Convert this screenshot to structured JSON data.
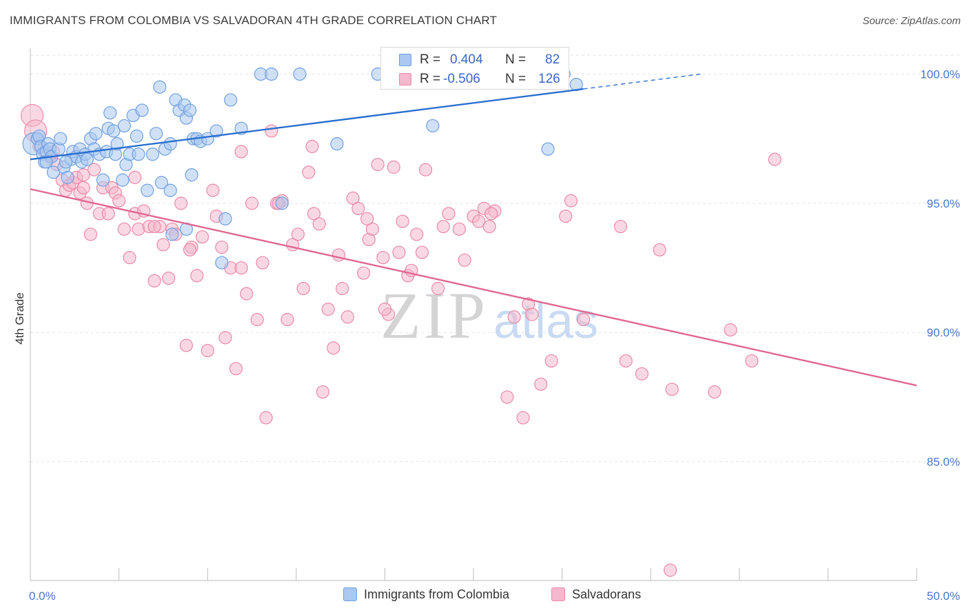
{
  "title": "IMMIGRANTS FROM COLOMBIA VS SALVADORAN 4TH GRADE CORRELATION CHART",
  "source": "Source: ZipAtlas.com",
  "watermark": {
    "zip": "ZIP",
    "atlas": "atlas"
  },
  "colors": {
    "blue_fill": "#aac8f0",
    "blue_stroke": "#6f9fe0",
    "blue_line": "#2a6fd0",
    "pink_fill": "#f5b8cc",
    "pink_stroke": "#e98aa8",
    "pink_line": "#e06890",
    "tick_text": "#4a74c9",
    "grid": "#e3e3e3"
  },
  "stats": [
    {
      "r_label": "R =",
      "r_value": "0.404",
      "n_label": "N =",
      "n_value": "82"
    },
    {
      "r_label": "R =",
      "r_value": "-0.506",
      "n_label": "N =",
      "n_value": "126"
    }
  ],
  "legend": [
    "Immigrants from Colombia",
    "Salvadorans"
  ],
  "chart_data": {
    "type": "scatter",
    "title": "IMMIGRANTS FROM COLOMBIA VS SALVADORAN 4TH GRADE CORRELATION CHART",
    "xlabel": "",
    "ylabel": "4th Grade",
    "xlim": [
      0,
      50
    ],
    "ylim": [
      80.4,
      101.0
    ],
    "x_tick_labels": [
      "0.0%",
      "50.0%"
    ],
    "y_ticks": [
      100,
      95,
      90,
      85
    ],
    "y_tick_labels": [
      "100.0%",
      "95.0%",
      "90.0%",
      "85.0%"
    ],
    "grid": true,
    "legend_position": "bottom",
    "series": [
      {
        "name": "Immigrants from Colombia",
        "trend": {
          "x": [
            0,
            37.8
          ],
          "y": [
            96.7,
            100.0
          ],
          "solid_to_x": 31.2
        },
        "points": [
          [
            0.2,
            97.3
          ],
          [
            0.4,
            97.5
          ],
          [
            0.5,
            97.6
          ],
          [
            0.6,
            97.2
          ],
          [
            0.7,
            96.9
          ],
          [
            0.8,
            96.6
          ],
          [
            0.9,
            97.0
          ],
          [
            1.0,
            97.3
          ],
          [
            1.1,
            97.1
          ],
          [
            1.2,
            96.8
          ],
          [
            1.3,
            96.2
          ],
          [
            1.6,
            97.1
          ],
          [
            1.7,
            97.5
          ],
          [
            1.9,
            96.4
          ],
          [
            2.1,
            96.0
          ],
          [
            2.3,
            96.7
          ],
          [
            2.4,
            97.0
          ],
          [
            2.6,
            96.8
          ],
          [
            2.8,
            97.1
          ],
          [
            2.9,
            96.6
          ],
          [
            3.1,
            96.9
          ],
          [
            3.2,
            96.7
          ],
          [
            3.4,
            97.5
          ],
          [
            3.6,
            97.1
          ],
          [
            3.7,
            97.7
          ],
          [
            3.9,
            96.9
          ],
          [
            4.1,
            95.9
          ],
          [
            4.3,
            97.0
          ],
          [
            4.4,
            97.9
          ],
          [
            4.5,
            98.5
          ],
          [
            4.7,
            97.8
          ],
          [
            4.8,
            96.9
          ],
          [
            4.9,
            97.3
          ],
          [
            5.2,
            95.9
          ],
          [
            5.3,
            98.0
          ],
          [
            5.4,
            96.5
          ],
          [
            5.6,
            96.9
          ],
          [
            5.8,
            98.4
          ],
          [
            6.0,
            97.6
          ],
          [
            6.3,
            98.6
          ],
          [
            6.6,
            95.5
          ],
          [
            6.9,
            96.9
          ],
          [
            7.1,
            97.7
          ],
          [
            7.3,
            99.5
          ],
          [
            7.4,
            95.8
          ],
          [
            7.6,
            97.1
          ],
          [
            7.9,
            97.3
          ],
          [
            7.9,
            95.5
          ],
          [
            8.2,
            99.0
          ],
          [
            8.4,
            98.6
          ],
          [
            8.7,
            98.8
          ],
          [
            8.8,
            98.3
          ],
          [
            9.0,
            98.6
          ],
          [
            9.2,
            97.5
          ],
          [
            9.4,
            97.5
          ],
          [
            9.6,
            97.4
          ],
          [
            10.0,
            97.5
          ],
          [
            10.5,
            97.8
          ],
          [
            8.8,
            94.0
          ],
          [
            8.0,
            93.8
          ],
          [
            10.8,
            92.7
          ],
          [
            11.0,
            94.4
          ],
          [
            11.3,
            99.0
          ],
          [
            11.9,
            97.9
          ],
          [
            13.0,
            100.0
          ],
          [
            13.6,
            100.0
          ],
          [
            14.2,
            95.0
          ],
          [
            15.2,
            100.0
          ],
          [
            17.3,
            97.3
          ],
          [
            19.6,
            100.0
          ],
          [
            20.8,
            100.0
          ],
          [
            22.7,
            98.0
          ],
          [
            26.1,
            100.0
          ],
          [
            26.3,
            100.0
          ],
          [
            26.8,
            100.0
          ],
          [
            29.2,
            97.1
          ],
          [
            30.1,
            100.0
          ],
          [
            30.8,
            99.6
          ],
          [
            9.1,
            96.1
          ],
          [
            6.1,
            96.9
          ],
          [
            0.9,
            96.6
          ],
          [
            2.0,
            96.6
          ]
        ]
      },
      {
        "name": "Salvadorans",
        "trend": {
          "x": [
            0,
            50
          ],
          "y": [
            95.55,
            87.95
          ]
        },
        "points": [
          [
            0.1,
            98.4
          ],
          [
            0.3,
            97.8
          ],
          [
            0.5,
            97.2
          ],
          [
            0.8,
            97.0
          ],
          [
            1.1,
            96.8
          ],
          [
            1.3,
            97.0
          ],
          [
            1.5,
            96.5
          ],
          [
            1.8,
            95.9
          ],
          [
            2.0,
            95.5
          ],
          [
            2.2,
            95.7
          ],
          [
            2.4,
            95.8
          ],
          [
            2.6,
            96.0
          ],
          [
            2.8,
            95.4
          ],
          [
            3.0,
            95.6
          ],
          [
            3.2,
            95.0
          ],
          [
            3.4,
            93.8
          ],
          [
            3.6,
            96.3
          ],
          [
            3.9,
            94.6
          ],
          [
            4.1,
            95.6
          ],
          [
            4.4,
            94.6
          ],
          [
            4.6,
            95.6
          ],
          [
            4.8,
            95.4
          ],
          [
            5.0,
            95.1
          ],
          [
            5.3,
            94.0
          ],
          [
            5.6,
            92.9
          ],
          [
            5.9,
            94.6
          ],
          [
            6.1,
            94.0
          ],
          [
            6.4,
            94.7
          ],
          [
            6.7,
            94.1
          ],
          [
            7.0,
            92.0
          ],
          [
            7.3,
            94.1
          ],
          [
            7.5,
            93.4
          ],
          [
            7.8,
            92.1
          ],
          [
            8.0,
            94.0
          ],
          [
            8.2,
            93.8
          ],
          [
            8.5,
            95.0
          ],
          [
            8.8,
            89.5
          ],
          [
            9.1,
            93.3
          ],
          [
            9.4,
            92.2
          ],
          [
            9.7,
            93.7
          ],
          [
            10.0,
            89.3
          ],
          [
            10.3,
            95.5
          ],
          [
            10.5,
            94.5
          ],
          [
            10.8,
            93.3
          ],
          [
            11.0,
            89.8
          ],
          [
            11.3,
            92.5
          ],
          [
            11.6,
            88.6
          ],
          [
            11.9,
            92.5
          ],
          [
            12.2,
            91.5
          ],
          [
            12.5,
            95.0
          ],
          [
            12.8,
            90.5
          ],
          [
            13.1,
            92.7
          ],
          [
            13.3,
            86.7
          ],
          [
            13.6,
            97.8
          ],
          [
            13.9,
            95.0
          ],
          [
            14.2,
            95.1
          ],
          [
            14.5,
            90.5
          ],
          [
            14.8,
            93.4
          ],
          [
            15.1,
            93.8
          ],
          [
            15.4,
            91.7
          ],
          [
            15.7,
            96.2
          ],
          [
            16.0,
            94.6
          ],
          [
            16.3,
            94.2
          ],
          [
            16.5,
            87.7
          ],
          [
            16.8,
            90.9
          ],
          [
            17.1,
            89.4
          ],
          [
            17.4,
            93.0
          ],
          [
            17.6,
            91.7
          ],
          [
            17.9,
            90.6
          ],
          [
            18.2,
            95.2
          ],
          [
            18.5,
            94.8
          ],
          [
            18.8,
            92.3
          ],
          [
            19.1,
            93.6
          ],
          [
            19.3,
            94.0
          ],
          [
            19.6,
            96.5
          ],
          [
            19.9,
            92.9
          ],
          [
            20.2,
            90.7
          ],
          [
            20.5,
            96.4
          ],
          [
            20.8,
            93.1
          ],
          [
            21.0,
            94.3
          ],
          [
            21.3,
            92.2
          ],
          [
            21.5,
            92.4
          ],
          [
            21.8,
            93.8
          ],
          [
            22.1,
            93.1
          ],
          [
            22.3,
            96.3
          ],
          [
            23.0,
            91.7
          ],
          [
            23.3,
            94.1
          ],
          [
            23.6,
            94.6
          ],
          [
            24.2,
            94.0
          ],
          [
            24.5,
            92.8
          ],
          [
            25.0,
            94.5
          ],
          [
            25.3,
            94.3
          ],
          [
            25.6,
            94.8
          ],
          [
            25.9,
            94.1
          ],
          [
            26.2,
            94.7
          ],
          [
            26.9,
            87.5
          ],
          [
            27.3,
            90.6
          ],
          [
            27.8,
            86.7
          ],
          [
            28.1,
            91.1
          ],
          [
            28.3,
            90.7
          ],
          [
            28.8,
            88.0
          ],
          [
            29.4,
            88.9
          ],
          [
            30.2,
            94.5
          ],
          [
            30.5,
            95.1
          ],
          [
            31.2,
            90.5
          ],
          [
            33.3,
            94.1
          ],
          [
            33.6,
            88.9
          ],
          [
            34.5,
            88.4
          ],
          [
            35.5,
            93.2
          ],
          [
            36.2,
            87.8
          ],
          [
            36.1,
            80.8
          ],
          [
            38.6,
            87.7
          ],
          [
            39.5,
            90.1
          ],
          [
            40.7,
            88.9
          ],
          [
            42.0,
            96.7
          ],
          [
            20.0,
            90.9
          ],
          [
            3.0,
            96.1
          ],
          [
            5.9,
            96.0
          ],
          [
            7.0,
            94.1
          ],
          [
            9.0,
            93.2
          ],
          [
            15.9,
            97.2
          ],
          [
            11.9,
            97.0
          ],
          [
            14.0,
            95.0
          ],
          [
            19.0,
            94.4
          ],
          [
            26.0,
            94.6
          ]
        ]
      }
    ]
  }
}
